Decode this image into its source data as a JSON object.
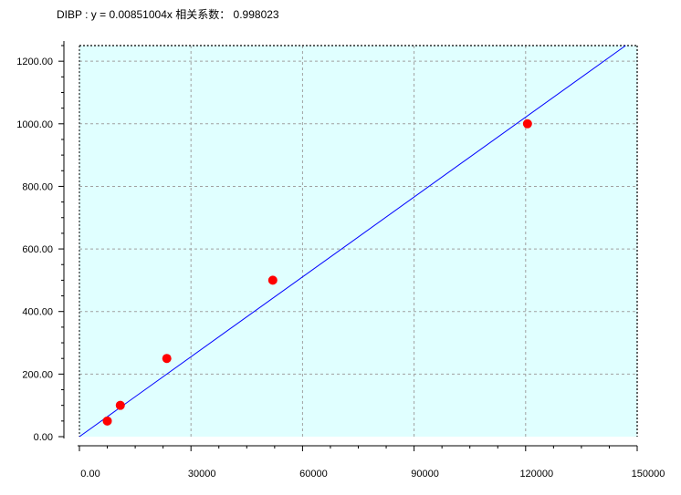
{
  "chart_data": {
    "type": "scatter",
    "title": "DIBP : y = 0.00851004x 相关系数： 0.998023",
    "xlabel": "",
    "ylabel": "",
    "xlim": [
      0,
      150000
    ],
    "ylim": [
      0,
      1250
    ],
    "x_ticks": [
      0,
      30000,
      60000,
      90000,
      120000,
      150000
    ],
    "x_tick_labels": [
      "0.00",
      "30000",
      "60000",
      "90000",
      "120000",
      "150000"
    ],
    "y_ticks": [
      0,
      200,
      400,
      600,
      800,
      1000,
      1200
    ],
    "y_tick_labels": [
      "0.00",
      "200.00",
      "400.00",
      "600.00",
      "800.00",
      "1000.00",
      "1200.00"
    ],
    "grid": true,
    "series": [
      {
        "type": "scatter",
        "x": [
          7500,
          11000,
          23500,
          52000,
          120500
        ],
        "y": [
          50,
          100,
          250,
          500,
          1000
        ]
      },
      {
        "type": "line",
        "slope": 0.00851004,
        "intercept": 0
      }
    ],
    "colors": {
      "plot_background": "#e0ffff",
      "grid": "#a0a0a0",
      "points": "#ff0000",
      "fit_line": "#0000ff",
      "axis": "#000000"
    }
  }
}
